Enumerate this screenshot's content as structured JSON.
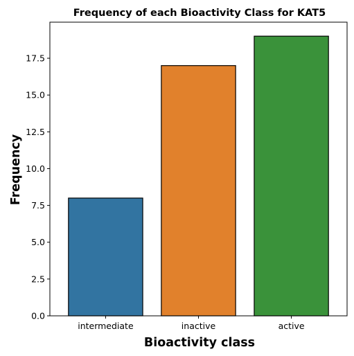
{
  "chart_data": {
    "type": "bar",
    "title": "Frequency of each Bioactivity Class for KAT5",
    "xlabel": "Bioactivity class",
    "ylabel": "Frequency",
    "categories": [
      "intermediate",
      "inactive",
      "active"
    ],
    "values": [
      8,
      17,
      19
    ],
    "colors": [
      "#3274a1",
      "#e1812c",
      "#3a923a"
    ],
    "edge_color": "#000000",
    "ylim": [
      0,
      19.95
    ],
    "yticks": [
      0.0,
      2.5,
      5.0,
      7.5,
      10.0,
      12.5,
      15.0,
      17.5
    ],
    "ytick_labels": [
      "0.0",
      "2.5",
      "5.0",
      "7.5",
      "10.0",
      "12.5",
      "15.0",
      "17.5"
    ],
    "grid": false,
    "legend": "none"
  }
}
